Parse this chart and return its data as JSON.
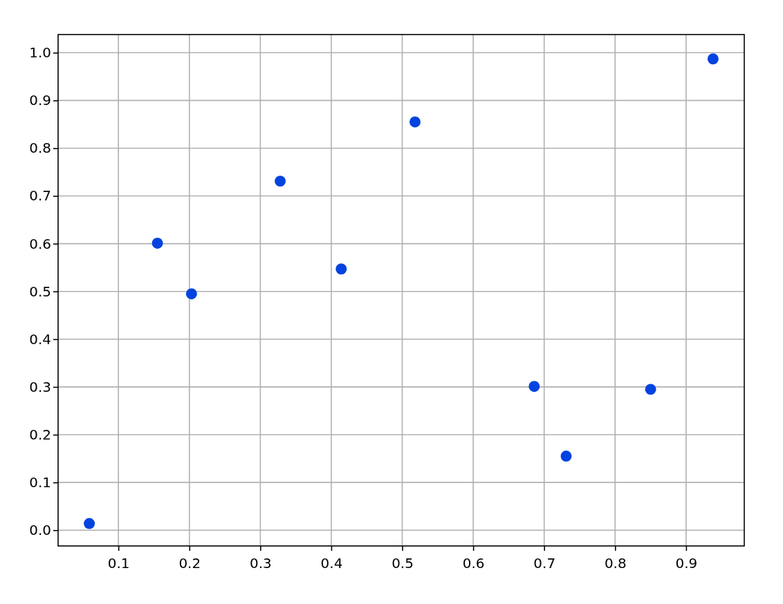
{
  "chart_data": {
    "type": "scatter",
    "x": [
      0.059,
      0.155,
      0.203,
      0.328,
      0.414,
      0.518,
      0.686,
      0.731,
      0.85,
      0.938
    ],
    "series": [
      {
        "color": "#0343df",
        "values": [
          0.014,
          0.601,
          0.495,
          0.731,
          0.547,
          0.855,
          0.301,
          0.155,
          0.295,
          0.987
        ]
      }
    ],
    "xlim": [
      0.015,
      0.982
    ],
    "xticks": [
      0.1,
      0.2,
      0.3,
      0.4,
      0.5,
      0.6,
      0.7,
      0.8,
      0.9
    ],
    "ylim": [
      -0.033,
      1.038
    ],
    "yticks": [
      {
        "value": 0,
        "label": "0.0"
      },
      0.1,
      0.2,
      0.3,
      0.4,
      0.5,
      0.6,
      0.7,
      0.8,
      0.9,
      {
        "value": 1,
        "label": "1.0"
      }
    ],
    "grid": true,
    "marker": "circle"
  }
}
